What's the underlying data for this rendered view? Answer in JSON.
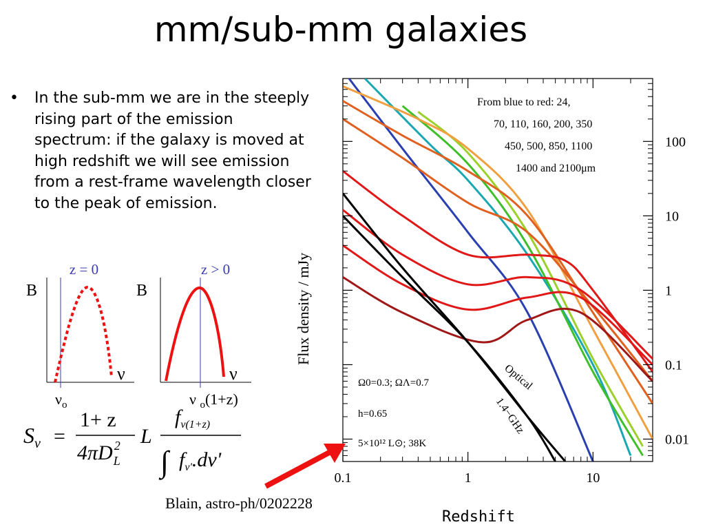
{
  "slide": {
    "title": "mm/sub-mm galaxies",
    "bullet": "In the sub-mm we are in the steeply rising part of the emission spectrum: if the galaxy is moved at high redshift we will see emission from a rest-frame wavelength closer to the peak of emission.",
    "bullet_marker": "•",
    "credit": "Blain, astro-ph/0202228"
  },
  "sketches": {
    "left": {
      "label": "z = 0",
      "y_axis": "B",
      "x_axis": "ν",
      "tick": "ν",
      "tick_sub": "o"
    },
    "right": {
      "label": "z > 0",
      "y_axis": "B",
      "x_axis": "ν",
      "tick": "ν ",
      "tick_sub": "o",
      "tick_suffix": "(1+z)"
    }
  },
  "formula": {
    "lhs": "S",
    "lhs_sub": "ν",
    "eq": "=",
    "num": "1+ z",
    "den": "4πD",
    "den_sup": "2",
    "den_sub": "L",
    "L": "L",
    "f": "f",
    "f_sub": "ν(1+z)",
    "integral": "∫",
    "int_f": "f",
    "int_f_sub": "ν'",
    "int_d": ".dν'"
  },
  "chart_data": {
    "type": "line",
    "xlabel": "Redshift",
    "ylabel": "Flux density / mJy",
    "x_scale": "log",
    "y_scale": "log",
    "xlim": [
      0.1,
      30
    ],
    "ylim": [
      0.005,
      700
    ],
    "x_ticks": [
      "0.1",
      "1",
      "10"
    ],
    "y_ticks": [
      "100",
      "10",
      "1",
      "0.1",
      "0.01"
    ],
    "legend_lines": [
      "From blue to red: 24,",
      "70, 110, 160, 200, 350",
      "450, 500, 850, 1100",
      "1400 and 2100μm"
    ],
    "params": [
      "Ω0=0.3; ΩΛ=0.7",
      "h=0.65",
      "5×10¹² L⊙; 38K"
    ],
    "annotations": [
      "Optical",
      "1.4−GHz"
    ],
    "colors": {
      "blue": "#2a3fb0",
      "teal": "#1aa8b0",
      "green": "#3fbf2a",
      "lightgreen": "#9bd12a",
      "orange": "#f0a040",
      "darkorange": "#e06020",
      "red": "#e01818",
      "darkred": "#a01818",
      "black": "#000000",
      "arrow": "#ee1111",
      "sketch_axis": "#3a3ab0"
    },
    "series": [
      {
        "color": "blue",
        "x": [
          0.1,
          0.3,
          1,
          3,
          10
        ],
        "y": [
          900,
          80,
          6,
          0.5,
          0.005
        ]
      },
      {
        "color": "teal",
        "x": [
          0.15,
          0.5,
          1,
          3,
          10,
          20
        ],
        "y": [
          700,
          90,
          30,
          3,
          0.1,
          0.006
        ]
      },
      {
        "color": "green",
        "x": [
          0.3,
          1,
          3,
          10,
          25
        ],
        "y": [
          300,
          50,
          4,
          0.08,
          0.006
        ]
      },
      {
        "color": "lightgreen",
        "x": [
          0.4,
          1,
          3,
          10,
          25
        ],
        "y": [
          250,
          70,
          6,
          0.12,
          0.008
        ]
      },
      {
        "color": "orange",
        "x": [
          0.1,
          0.4,
          1,
          3,
          10,
          30
        ],
        "y": [
          550,
          200,
          80,
          12,
          0.3,
          0.01
        ]
      },
      {
        "color": "darkorange",
        "x": [
          0.1,
          0.3,
          1,
          3,
          10,
          30
        ],
        "y": [
          350,
          120,
          40,
          10,
          0.5,
          0.03
        ]
      },
      {
        "color": "darkorange",
        "x": [
          0.1,
          0.3,
          1,
          3,
          10,
          30
        ],
        "y": [
          200,
          60,
          15,
          6,
          0.6,
          0.06
        ]
      },
      {
        "color": "red",
        "x": [
          0.1,
          0.3,
          1,
          3,
          6,
          10,
          30
        ],
        "y": [
          40,
          10,
          3,
          3,
          2.5,
          1,
          0.08
        ]
      },
      {
        "color": "red",
        "x": [
          0.1,
          0.3,
          1,
          3,
          8,
          30
        ],
        "y": [
          12,
          3,
          1.2,
          1.5,
          1,
          0.12
        ]
      },
      {
        "color": "red",
        "x": [
          0.1,
          0.3,
          1,
          3,
          8,
          30
        ],
        "y": [
          4,
          1.2,
          0.55,
          0.8,
          0.8,
          0.1
        ]
      },
      {
        "color": "darkred",
        "x": [
          0.1,
          0.3,
          1.3,
          3,
          8,
          30
        ],
        "y": [
          1.5,
          0.5,
          0.2,
          0.4,
          0.5,
          0.06
        ]
      },
      {
        "color": "black",
        "x": [
          0.1,
          0.3,
          1,
          3,
          6
        ],
        "y": [
          20,
          2,
          0.2,
          0.02,
          0.005
        ]
      },
      {
        "color": "black",
        "x": [
          0.1,
          0.3,
          1,
          3,
          5
        ],
        "y": [
          10,
          1.5,
          0.2,
          0.02,
          0.005
        ]
      }
    ]
  }
}
